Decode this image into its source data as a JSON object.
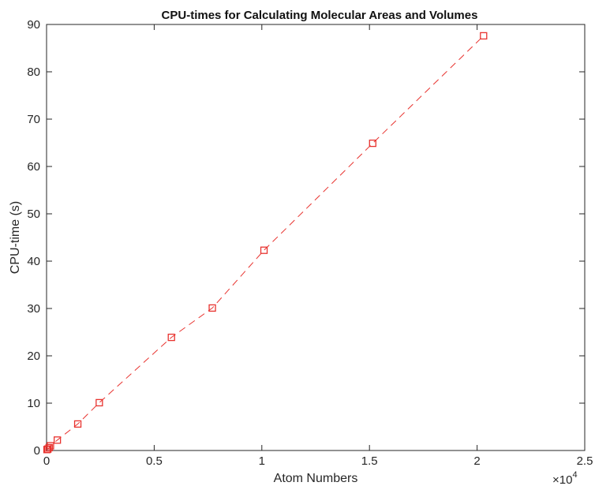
{
  "chart_data": {
    "type": "line",
    "title": "CPU-times for Calculating Molecular Areas and Volumes",
    "xlabel": "Atom Numbers",
    "ylabel": "CPU-time (s)",
    "xlim": [
      0,
      25000
    ],
    "ylim": [
      0,
      90
    ],
    "x_exponent_label": "×10",
    "x_exponent_power": "4",
    "x_ticks": [
      0,
      5000,
      10000,
      15000,
      20000,
      25000
    ],
    "x_tick_labels": [
      "0",
      "0.5",
      "1",
      "1.5",
      "2",
      "2.5"
    ],
    "y_ticks": [
      0,
      10,
      20,
      30,
      40,
      50,
      60,
      70,
      80,
      90
    ],
    "y_tick_labels": [
      "0",
      "10",
      "20",
      "30",
      "40",
      "50",
      "60",
      "70",
      "80",
      "90"
    ],
    "grid": false,
    "series": [
      {
        "color": "#e8332f",
        "line_style": "dashed",
        "marker": "square",
        "x": [
          20,
          60,
          120,
          180,
          500,
          1450,
          2450,
          5800,
          7700,
          10100,
          15150,
          20300
        ],
        "y": [
          0.2,
          0.3,
          0.6,
          1.0,
          2.2,
          5.6,
          10.1,
          23.9,
          30.1,
          42.3,
          64.9,
          87.6
        ]
      }
    ]
  }
}
